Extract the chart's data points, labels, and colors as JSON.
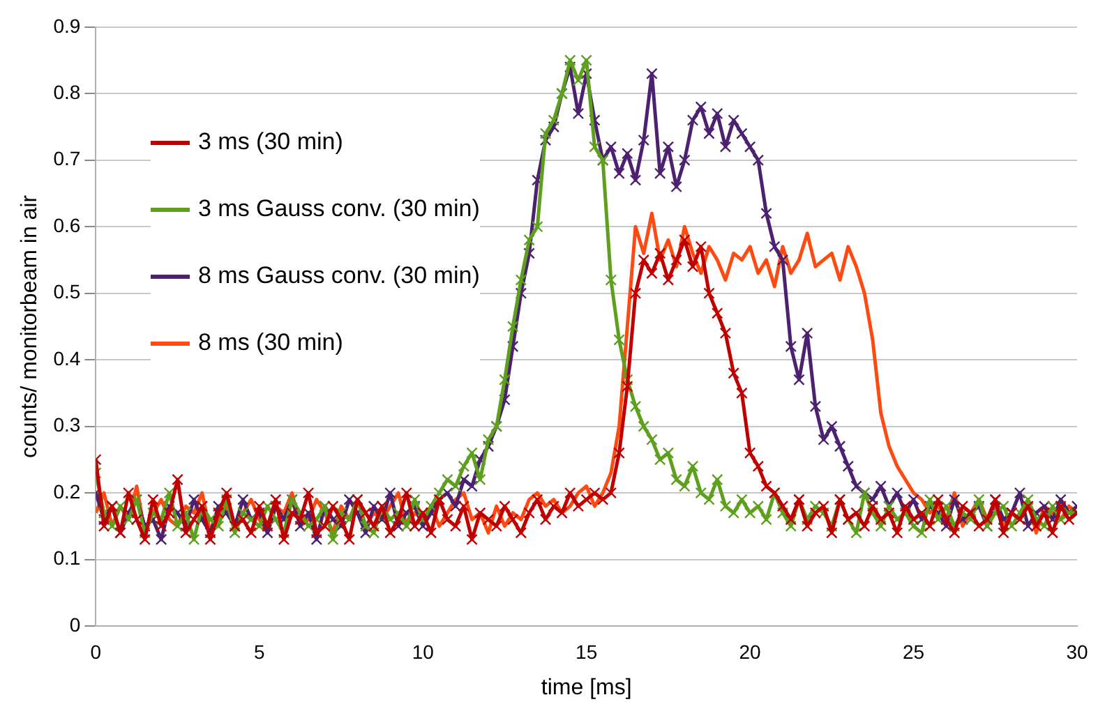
{
  "chart_data": {
    "type": "line",
    "xlabel": "time [ms]",
    "ylabel": "counts/ monitorbeam in air",
    "x": [
      0,
      0.25,
      0.5,
      0.75,
      1,
      1.25,
      1.5,
      1.75,
      2,
      2.25,
      2.5,
      2.75,
      3,
      3.25,
      3.5,
      3.75,
      4,
      4.25,
      4.5,
      4.75,
      5,
      5.25,
      5.5,
      5.75,
      6,
      6.25,
      6.5,
      6.75,
      7,
      7.25,
      7.5,
      7.75,
      8,
      8.25,
      8.5,
      8.75,
      9,
      9.25,
      9.5,
      9.75,
      10,
      10.25,
      10.5,
      10.75,
      11,
      11.25,
      11.5,
      11.75,
      12,
      12.25,
      12.5,
      12.75,
      13,
      13.25,
      13.5,
      13.75,
      14,
      14.25,
      14.5,
      14.75,
      15,
      15.25,
      15.5,
      15.75,
      16,
      16.25,
      16.5,
      16.75,
      17,
      17.25,
      17.5,
      17.75,
      18,
      18.25,
      18.5,
      18.75,
      19,
      19.25,
      19.5,
      19.75,
      20,
      20.25,
      20.5,
      20.75,
      21,
      21.25,
      21.5,
      21.75,
      22,
      22.25,
      22.5,
      22.75,
      23,
      23.25,
      23.5,
      23.75,
      24,
      24.25,
      24.5,
      24.75,
      25,
      25.25,
      25.5,
      25.75,
      26,
      26.25,
      26.5,
      26.75,
      27,
      27.25,
      27.5,
      27.75,
      28,
      28.25,
      28.5,
      28.75,
      29,
      29.25,
      29.5,
      29.75,
      30
    ],
    "series": [
      {
        "name": "3 ms (30 min)",
        "color": "#c00000",
        "marker": "cross",
        "values": [
          0.25,
          0.15,
          0.18,
          0.14,
          0.2,
          0.16,
          0.13,
          0.19,
          0.15,
          0.17,
          0.22,
          0.14,
          0.16,
          0.18,
          0.13,
          0.17,
          0.2,
          0.15,
          0.16,
          0.14,
          0.18,
          0.15,
          0.19,
          0.13,
          0.17,
          0.16,
          0.2,
          0.14,
          0.15,
          0.18,
          0.16,
          0.13,
          0.19,
          0.17,
          0.15,
          0.18,
          0.14,
          0.16,
          0.2,
          0.15,
          0.17,
          0.14,
          0.19,
          0.16,
          0.15,
          0.18,
          0.13,
          0.17,
          0.16,
          0.15,
          0.18,
          0.16,
          0.14,
          0.17,
          0.19,
          0.16,
          0.18,
          0.17,
          0.2,
          0.18,
          0.19,
          0.2,
          0.19,
          0.2,
          0.26,
          0.36,
          0.5,
          0.55,
          0.53,
          0.56,
          0.52,
          0.55,
          0.58,
          0.54,
          0.57,
          0.5,
          0.47,
          0.44,
          0.38,
          0.35,
          0.26,
          0.24,
          0.21,
          0.2,
          0.18,
          0.16,
          0.19,
          0.15,
          0.17,
          0.18,
          0.14,
          0.19,
          0.16,
          0.17,
          0.15,
          0.18,
          0.16,
          0.17,
          0.14,
          0.18,
          0.16,
          0.17,
          0.15,
          0.19,
          0.16,
          0.14,
          0.18,
          0.17,
          0.15,
          0.16,
          0.19,
          0.14,
          0.17,
          0.16,
          0.18,
          0.15,
          0.17,
          0.14,
          0.18,
          0.16,
          0.17
        ]
      },
      {
        "name": "3 ms Gauss conv. (30 min)",
        "color": "#5ea01e",
        "marker": "cross",
        "values": [
          0.23,
          0.17,
          0.15,
          0.18,
          0.16,
          0.19,
          0.14,
          0.17,
          0.16,
          0.2,
          0.15,
          0.17,
          0.13,
          0.18,
          0.16,
          0.15,
          0.19,
          0.14,
          0.17,
          0.16,
          0.15,
          0.18,
          0.16,
          0.14,
          0.19,
          0.17,
          0.15,
          0.16,
          0.18,
          0.13,
          0.17,
          0.16,
          0.19,
          0.15,
          0.14,
          0.18,
          0.16,
          0.17,
          0.15,
          0.19,
          0.16,
          0.18,
          0.2,
          0.22,
          0.21,
          0.24,
          0.26,
          0.22,
          0.28,
          0.3,
          0.37,
          0.45,
          0.52,
          0.58,
          0.6,
          0.74,
          0.76,
          0.8,
          0.85,
          0.82,
          0.85,
          0.72,
          0.7,
          0.52,
          0.43,
          0.37,
          0.33,
          0.3,
          0.28,
          0.25,
          0.26,
          0.22,
          0.21,
          0.24,
          0.2,
          0.19,
          0.22,
          0.18,
          0.17,
          0.19,
          0.17,
          0.18,
          0.16,
          0.2,
          0.17,
          0.15,
          0.19,
          0.16,
          0.18,
          0.17,
          0.15,
          0.19,
          0.16,
          0.14,
          0.2,
          0.17,
          0.15,
          0.18,
          0.16,
          0.17,
          0.15,
          0.14,
          0.19,
          0.16,
          0.18,
          0.15,
          0.17,
          0.16,
          0.19,
          0.15,
          0.17,
          0.18,
          0.15,
          0.17,
          0.19,
          0.16,
          0.15,
          0.18,
          0.16,
          0.17,
          0.17
        ]
      },
      {
        "name": "8 ms Gauss conv. (30 min)",
        "color": "#4b2170",
        "marker": "cross",
        "values": [
          0.2,
          0.16,
          0.18,
          0.14,
          0.17,
          0.19,
          0.15,
          0.16,
          0.13,
          0.18,
          0.17,
          0.15,
          0.19,
          0.16,
          0.14,
          0.18,
          0.17,
          0.15,
          0.19,
          0.16,
          0.17,
          0.14,
          0.18,
          0.16,
          0.19,
          0.15,
          0.17,
          0.13,
          0.18,
          0.16,
          0.15,
          0.19,
          0.17,
          0.14,
          0.18,
          0.16,
          0.2,
          0.15,
          0.17,
          0.18,
          0.15,
          0.17,
          0.19,
          0.2,
          0.18,
          0.22,
          0.21,
          0.25,
          0.27,
          0.3,
          0.34,
          0.42,
          0.5,
          0.56,
          0.67,
          0.73,
          0.75,
          0.8,
          0.84,
          0.77,
          0.83,
          0.76,
          0.7,
          0.72,
          0.68,
          0.71,
          0.67,
          0.73,
          0.83,
          0.68,
          0.72,
          0.66,
          0.7,
          0.76,
          0.78,
          0.74,
          0.77,
          0.72,
          0.76,
          0.74,
          0.72,
          0.7,
          0.62,
          0.57,
          0.55,
          0.42,
          0.37,
          0.44,
          0.33,
          0.28,
          0.3,
          0.27,
          0.24,
          0.21,
          0.2,
          0.19,
          0.21,
          0.18,
          0.2,
          0.17,
          0.19,
          0.16,
          0.18,
          0.17,
          0.15,
          0.19,
          0.16,
          0.17,
          0.18,
          0.15,
          0.19,
          0.16,
          0.17,
          0.2,
          0.15,
          0.17,
          0.18,
          0.16,
          0.19,
          0.17,
          0.18
        ]
      },
      {
        "name": "8 ms (30 min)",
        "color": "#ff4a12",
        "values": [
          0.17,
          0.2,
          0.15,
          0.18,
          0.16,
          0.21,
          0.14,
          0.17,
          0.19,
          0.16,
          0.15,
          0.18,
          0.17,
          0.2,
          0.14,
          0.16,
          0.18,
          0.15,
          0.17,
          0.19,
          0.16,
          0.14,
          0.18,
          0.17,
          0.2,
          0.15,
          0.16,
          0.19,
          0.17,
          0.14,
          0.18,
          0.16,
          0.19,
          0.15,
          0.17,
          0.16,
          0.18,
          0.2,
          0.15,
          0.17,
          0.16,
          0.18,
          0.15,
          0.17,
          0.19,
          0.2,
          0.16,
          0.17,
          0.14,
          0.18,
          0.15,
          0.17,
          0.16,
          0.19,
          0.2,
          0.18,
          0.19,
          0.17,
          0.18,
          0.2,
          0.21,
          0.18,
          0.2,
          0.23,
          0.3,
          0.45,
          0.6,
          0.56,
          0.62,
          0.55,
          0.58,
          0.54,
          0.6,
          0.56,
          0.53,
          0.57,
          0.55,
          0.52,
          0.56,
          0.55,
          0.57,
          0.53,
          0.55,
          0.51,
          0.57,
          0.53,
          0.55,
          0.59,
          0.54,
          0.55,
          0.56,
          0.52,
          0.57,
          0.54,
          0.5,
          0.43,
          0.32,
          0.27,
          0.24,
          0.22,
          0.2,
          0.19,
          0.17,
          0.18,
          0.16,
          0.2,
          0.15,
          0.17,
          0.19,
          0.16,
          0.18,
          0.15,
          0.17,
          0.16,
          0.19,
          0.14,
          0.18,
          0.17,
          0.16,
          0.18,
          0.17
        ]
      }
    ],
    "xlim": [
      0,
      30
    ],
    "xticks": [
      0,
      5,
      10,
      15,
      20,
      25,
      30
    ],
    "ylim": [
      0,
      0.9
    ],
    "yticks": [
      0,
      0.1,
      0.2,
      0.3,
      0.4,
      0.5,
      0.6,
      0.7,
      0.8,
      0.9
    ],
    "grid": "y",
    "legend": "top left"
  }
}
